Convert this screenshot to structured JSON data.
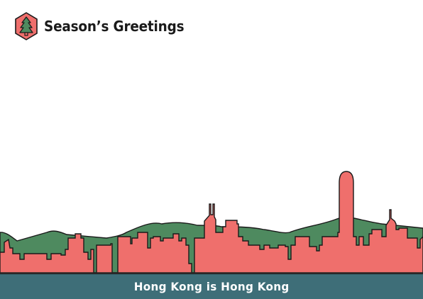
{
  "header": {
    "title": "Season’s Greetings",
    "logo_icon": "christmas-tree-hexagon-icon"
  },
  "footer": {
    "caption": "Hong Kong is Hong Kong"
  },
  "colors": {
    "background": "#ffffff",
    "logo_fill": "#ef6f6c",
    "hills": "#4e8a5f",
    "buildings": "#ef6f6c",
    "water": "#3e6e78",
    "outline": "#1a1a1a",
    "caption_text": "#ffffff"
  }
}
